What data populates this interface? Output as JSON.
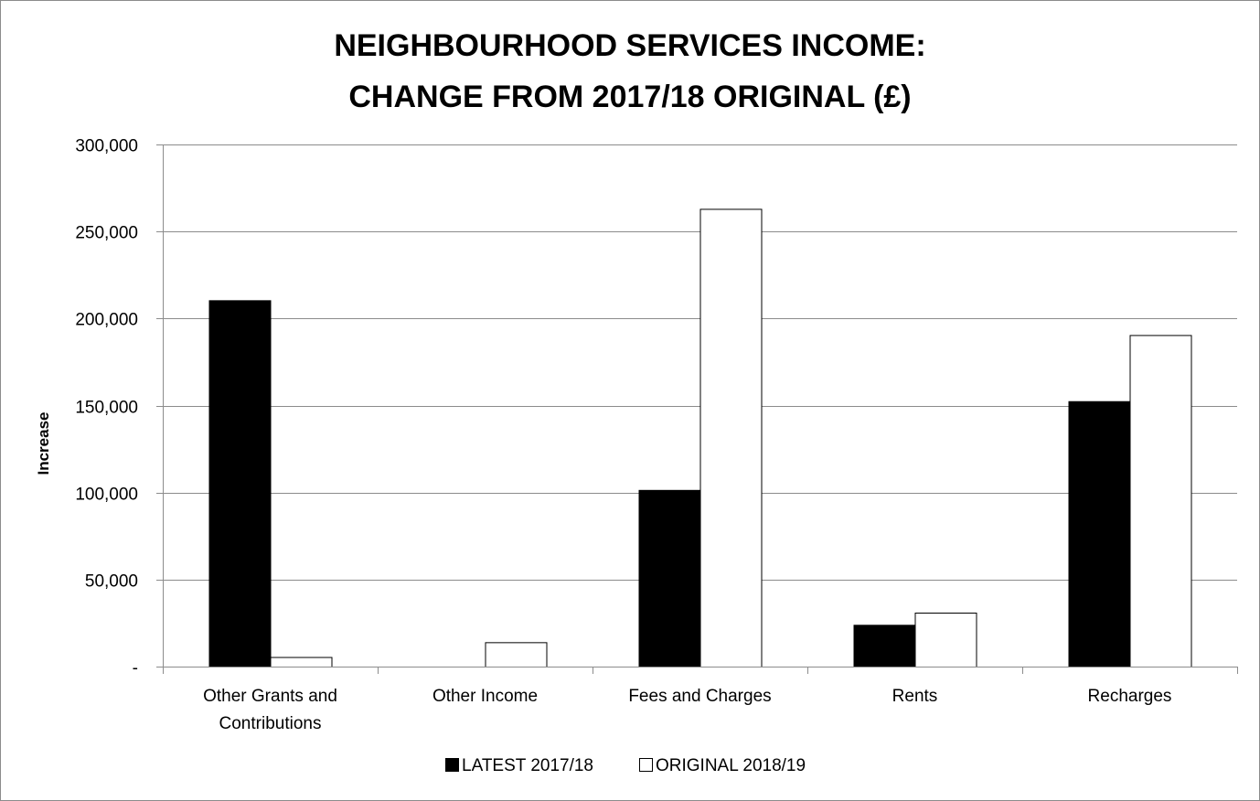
{
  "chart_data": {
    "type": "bar",
    "title_lines": [
      "NEIGHBOURHOOD SERVICES INCOME:",
      "CHANGE FROM 2017/18 ORIGINAL (£)"
    ],
    "xlabel": "",
    "ylabel": "Increase",
    "categories": [
      [
        "Other Grants and",
        "Contributions"
      ],
      [
        "Other Income"
      ],
      [
        "Fees and Charges"
      ],
      [
        "Rents"
      ],
      [
        "Recharges"
      ]
    ],
    "series": [
      {
        "name": "LATEST 2017/18",
        "values": [
          210500,
          0,
          101500,
          24000,
          152500
        ],
        "color": "#000000"
      },
      {
        "name": "ORIGINAL 2018/19",
        "values": [
          5500,
          14000,
          263000,
          31000,
          190500
        ],
        "color": "#ffffff"
      }
    ],
    "ylim": [
      0,
      300000
    ],
    "yticks": [
      0,
      50000,
      100000,
      150000,
      200000,
      250000,
      300000
    ],
    "ytick_labels": [
      "-",
      "50,000",
      "100,000",
      "150,000",
      "200,000",
      "250,000",
      "300,000"
    ],
    "grid": true,
    "legend_position": "bottom"
  }
}
